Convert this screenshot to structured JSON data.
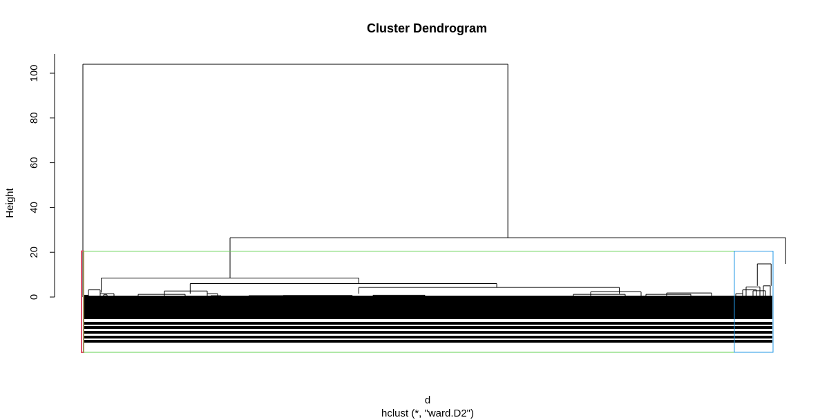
{
  "chart_data": {
    "type": "dendrogram",
    "title": "Cluster Dendrogram",
    "ylabel": "Height",
    "xlabel": "d",
    "sublabel": "hclust (*, \"ward.D2\")",
    "yticks": [
      0,
      20,
      40,
      60,
      80,
      100
    ],
    "ylim": [
      0,
      104
    ],
    "leaf_count": 2250,
    "merges": [
      {
        "name": "root",
        "height": 104,
        "left_leaf": 0,
        "right_leaf": 1430
      },
      {
        "name": "main-right",
        "height": 26.5,
        "left_leaf": 490,
        "right_leaf": 2200
      },
      {
        "name": "middle",
        "height": 8.5,
        "left_leaf": 60,
        "right_leaf": 900
      },
      {
        "name": "middle-right",
        "height": 6,
        "left_leaf": 350,
        "right_leaf": 1350
      },
      {
        "name": "middle-right-b",
        "height": 4.3,
        "left_leaf": 900,
        "right_leaf": 1750
      },
      {
        "name": "right-group",
        "height": 14.8,
        "left_leaf": 2200,
        "right_leaf": 2245
      }
    ],
    "cut_height": 20.5,
    "cluster_boxes": [
      {
        "name": "cluster-1",
        "color": "#df536b",
        "from_leaf": 0,
        "to_leaf": 2
      },
      {
        "name": "cluster-2",
        "color": "#61d04f",
        "from_leaf": 2,
        "to_leaf": 2120
      },
      {
        "name": "cluster-3",
        "color": "#2297e6",
        "from_leaf": 2120,
        "to_leaf": 2249
      }
    ]
  }
}
